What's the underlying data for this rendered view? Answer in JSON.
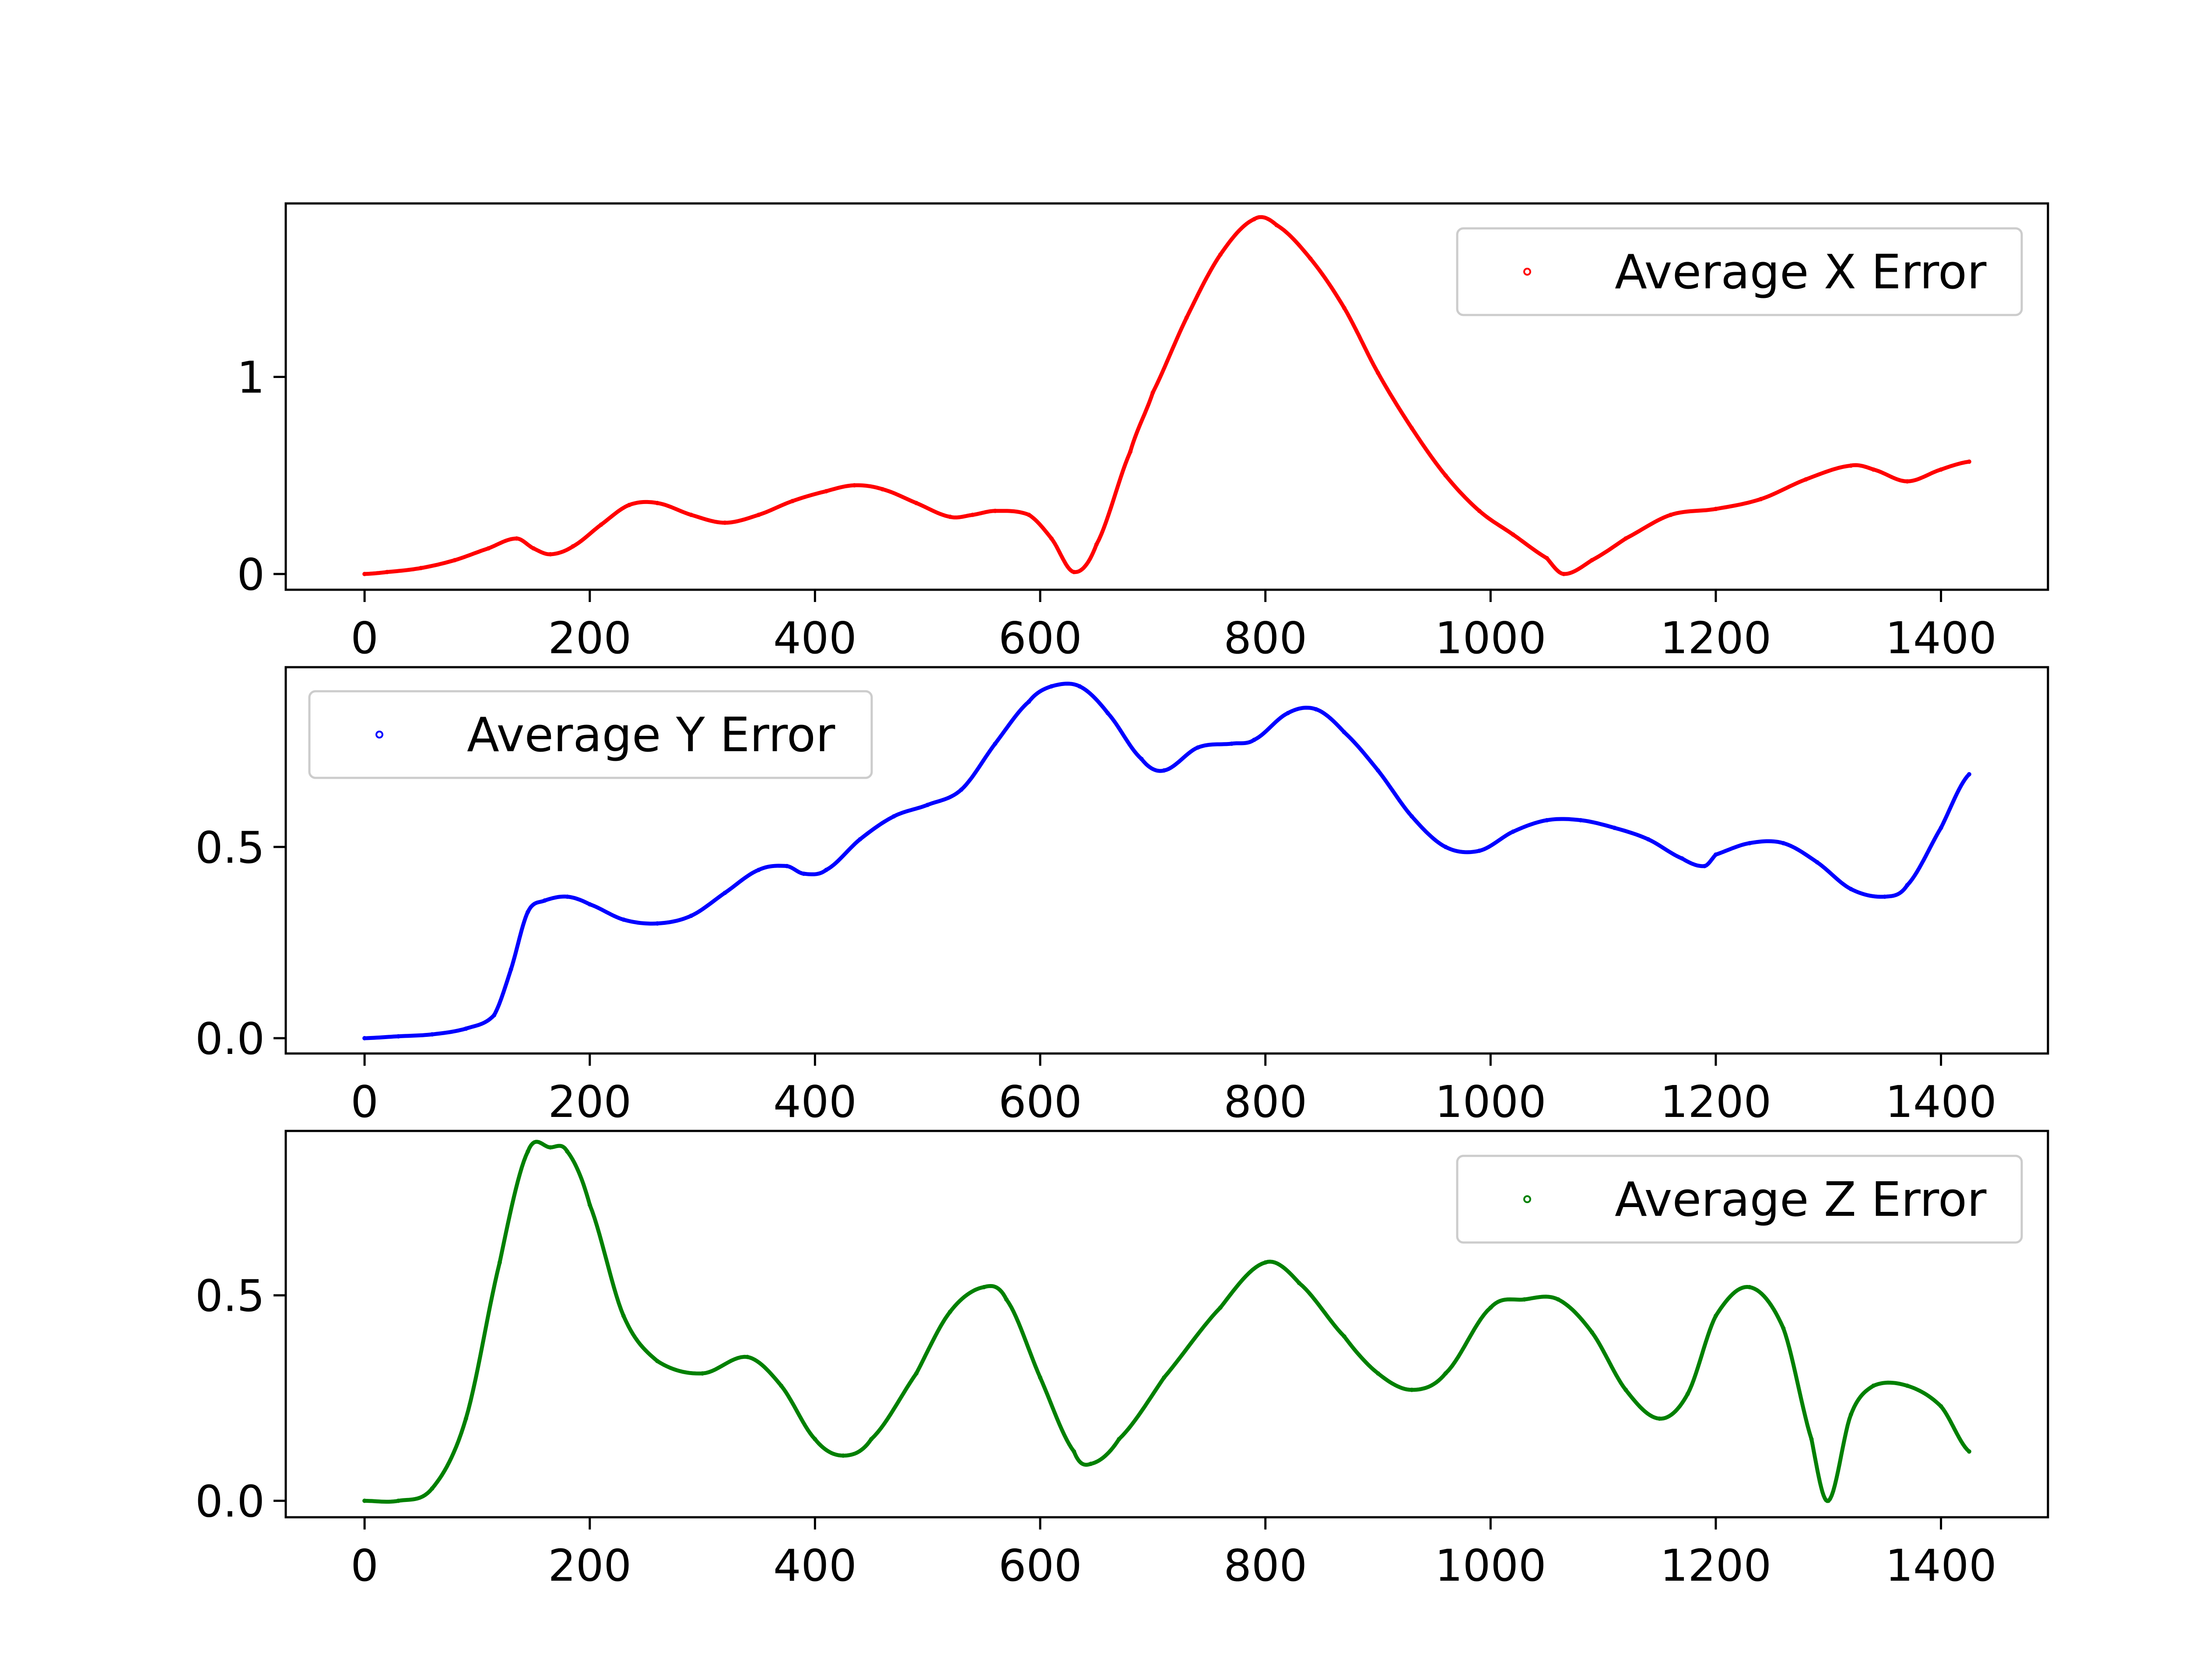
{
  "chart_data": [
    {
      "type": "scatter",
      "title": "",
      "xlabel": "",
      "ylabel": "",
      "xlim": [
        -70,
        1495
      ],
      "ylim": [
        -0.08,
        1.88
      ],
      "x_ticks": [
        0,
        200,
        400,
        600,
        800,
        1000,
        1200,
        1400
      ],
      "y_ticks": [
        0,
        1
      ],
      "y_tick_labels": [
        "0",
        "1"
      ],
      "legend_position": "top-right",
      "grid": false,
      "series": [
        {
          "name": "Average X Error",
          "color": "#ff0000",
          "points": [
            [
              0,
              0
            ],
            [
              20,
              0.01
            ],
            [
              50,
              0.03
            ],
            [
              80,
              0.07
            ],
            [
              110,
              0.13
            ],
            [
              135,
              0.18
            ],
            [
              150,
              0.13
            ],
            [
              165,
              0.1
            ],
            [
              185,
              0.14
            ],
            [
              210,
              0.25
            ],
            [
              235,
              0.35
            ],
            [
              260,
              0.36
            ],
            [
              290,
              0.3
            ],
            [
              320,
              0.26
            ],
            [
              350,
              0.3
            ],
            [
              380,
              0.37
            ],
            [
              410,
              0.42
            ],
            [
              435,
              0.45
            ],
            [
              460,
              0.43
            ],
            [
              490,
              0.36
            ],
            [
              520,
              0.29
            ],
            [
              540,
              0.3
            ],
            [
              560,
              0.32
            ],
            [
              590,
              0.3
            ],
            [
              610,
              0.18
            ],
            [
              630,
              0.01
            ],
            [
              650,
              0.15
            ],
            [
              680,
              0.62
            ],
            [
              700,
              0.92
            ],
            [
              730,
              1.3
            ],
            [
              760,
              1.62
            ],
            [
              790,
              1.8
            ],
            [
              810,
              1.77
            ],
            [
              840,
              1.6
            ],
            [
              870,
              1.35
            ],
            [
              900,
              1.02
            ],
            [
              930,
              0.74
            ],
            [
              960,
              0.5
            ],
            [
              990,
              0.32
            ],
            [
              1020,
              0.2
            ],
            [
              1050,
              0.08
            ],
            [
              1065,
              0.0
            ],
            [
              1090,
              0.07
            ],
            [
              1120,
              0.18
            ],
            [
              1160,
              0.3
            ],
            [
              1200,
              0.33
            ],
            [
              1240,
              0.38
            ],
            [
              1280,
              0.48
            ],
            [
              1320,
              0.55
            ],
            [
              1340,
              0.53
            ],
            [
              1370,
              0.47
            ],
            [
              1400,
              0.53
            ],
            [
              1425,
              0.57
            ]
          ]
        }
      ]
    },
    {
      "type": "scatter",
      "title": "",
      "xlabel": "",
      "ylabel": "",
      "xlim": [
        -70,
        1495
      ],
      "ylim": [
        -0.04,
        0.97
      ],
      "x_ticks": [
        0,
        200,
        400,
        600,
        800,
        1000,
        1200,
        1400
      ],
      "y_ticks": [
        0.0,
        0.5
      ],
      "y_tick_labels": [
        "0.0",
        "0.5"
      ],
      "legend_position": "top-left",
      "grid": false,
      "series": [
        {
          "name": "Average Y Error",
          "color": "#0000ff",
          "points": [
            [
              0,
              0
            ],
            [
              30,
              0.005
            ],
            [
              60,
              0.01
            ],
            [
              90,
              0.025
            ],
            [
              115,
              0.06
            ],
            [
              130,
              0.18
            ],
            [
              145,
              0.33
            ],
            [
              160,
              0.36
            ],
            [
              180,
              0.37
            ],
            [
              200,
              0.35
            ],
            [
              230,
              0.31
            ],
            [
              260,
              0.3
            ],
            [
              290,
              0.32
            ],
            [
              320,
              0.38
            ],
            [
              350,
              0.44
            ],
            [
              375,
              0.45
            ],
            [
              390,
              0.43
            ],
            [
              410,
              0.44
            ],
            [
              440,
              0.52
            ],
            [
              470,
              0.58
            ],
            [
              500,
              0.61
            ],
            [
              530,
              0.65
            ],
            [
              560,
              0.77
            ],
            [
              590,
              0.88
            ],
            [
              610,
              0.92
            ],
            [
              635,
              0.92
            ],
            [
              660,
              0.85
            ],
            [
              690,
              0.73
            ],
            [
              710,
              0.7
            ],
            [
              740,
              0.76
            ],
            [
              770,
              0.77
            ],
            [
              790,
              0.78
            ],
            [
              820,
              0.85
            ],
            [
              845,
              0.86
            ],
            [
              870,
              0.8
            ],
            [
              900,
              0.7
            ],
            [
              930,
              0.58
            ],
            [
              960,
              0.5
            ],
            [
              990,
              0.49
            ],
            [
              1020,
              0.54
            ],
            [
              1050,
              0.57
            ],
            [
              1080,
              0.57
            ],
            [
              1110,
              0.55
            ],
            [
              1140,
              0.52
            ],
            [
              1170,
              0.47
            ],
            [
              1190,
              0.45
            ],
            [
              1200,
              0.48
            ],
            [
              1230,
              0.51
            ],
            [
              1260,
              0.51
            ],
            [
              1290,
              0.46
            ],
            [
              1320,
              0.39
            ],
            [
              1350,
              0.37
            ],
            [
              1370,
              0.4
            ],
            [
              1400,
              0.55
            ],
            [
              1425,
              0.69
            ]
          ]
        }
      ]
    },
    {
      "type": "scatter",
      "title": "",
      "xlabel": "",
      "ylabel": "",
      "xlim": [
        -70,
        1495
      ],
      "ylim": [
        -0.04,
        0.9
      ],
      "x_ticks": [
        0,
        200,
        400,
        600,
        800,
        1000,
        1200,
        1400
      ],
      "y_ticks": [
        0.0,
        0.5
      ],
      "y_tick_labels": [
        "0.0",
        "0.5"
      ],
      "legend_position": "top-right",
      "grid": false,
      "series": [
        {
          "name": "Average Z Error",
          "color": "#008000",
          "points": [
            [
              0,
              0
            ],
            [
              30,
              0.0
            ],
            [
              60,
              0.03
            ],
            [
              90,
              0.2
            ],
            [
              120,
              0.58
            ],
            [
              145,
              0.85
            ],
            [
              165,
              0.86
            ],
            [
              180,
              0.85
            ],
            [
              200,
              0.72
            ],
            [
              230,
              0.45
            ],
            [
              260,
              0.34
            ],
            [
              300,
              0.31
            ],
            [
              340,
              0.35
            ],
            [
              370,
              0.28
            ],
            [
              400,
              0.15
            ],
            [
              425,
              0.11
            ],
            [
              450,
              0.15
            ],
            [
              490,
              0.31
            ],
            [
              520,
              0.46
            ],
            [
              550,
              0.52
            ],
            [
              570,
              0.49
            ],
            [
              600,
              0.3
            ],
            [
              630,
              0.12
            ],
            [
              645,
              0.09
            ],
            [
              670,
              0.15
            ],
            [
              710,
              0.3
            ],
            [
              760,
              0.47
            ],
            [
              800,
              0.58
            ],
            [
              830,
              0.53
            ],
            [
              870,
              0.4
            ],
            [
              900,
              0.31
            ],
            [
              930,
              0.27
            ],
            [
              960,
              0.31
            ],
            [
              1000,
              0.47
            ],
            [
              1030,
              0.49
            ],
            [
              1060,
              0.49
            ],
            [
              1090,
              0.41
            ],
            [
              1120,
              0.27
            ],
            [
              1150,
              0.2
            ],
            [
              1175,
              0.26
            ],
            [
              1200,
              0.45
            ],
            [
              1230,
              0.52
            ],
            [
              1260,
              0.42
            ],
            [
              1285,
              0.15
            ],
            [
              1300,
              0.0
            ],
            [
              1320,
              0.21
            ],
            [
              1340,
              0.28
            ],
            [
              1370,
              0.28
            ],
            [
              1400,
              0.23
            ],
            [
              1425,
              0.12
            ]
          ]
        }
      ]
    }
  ]
}
